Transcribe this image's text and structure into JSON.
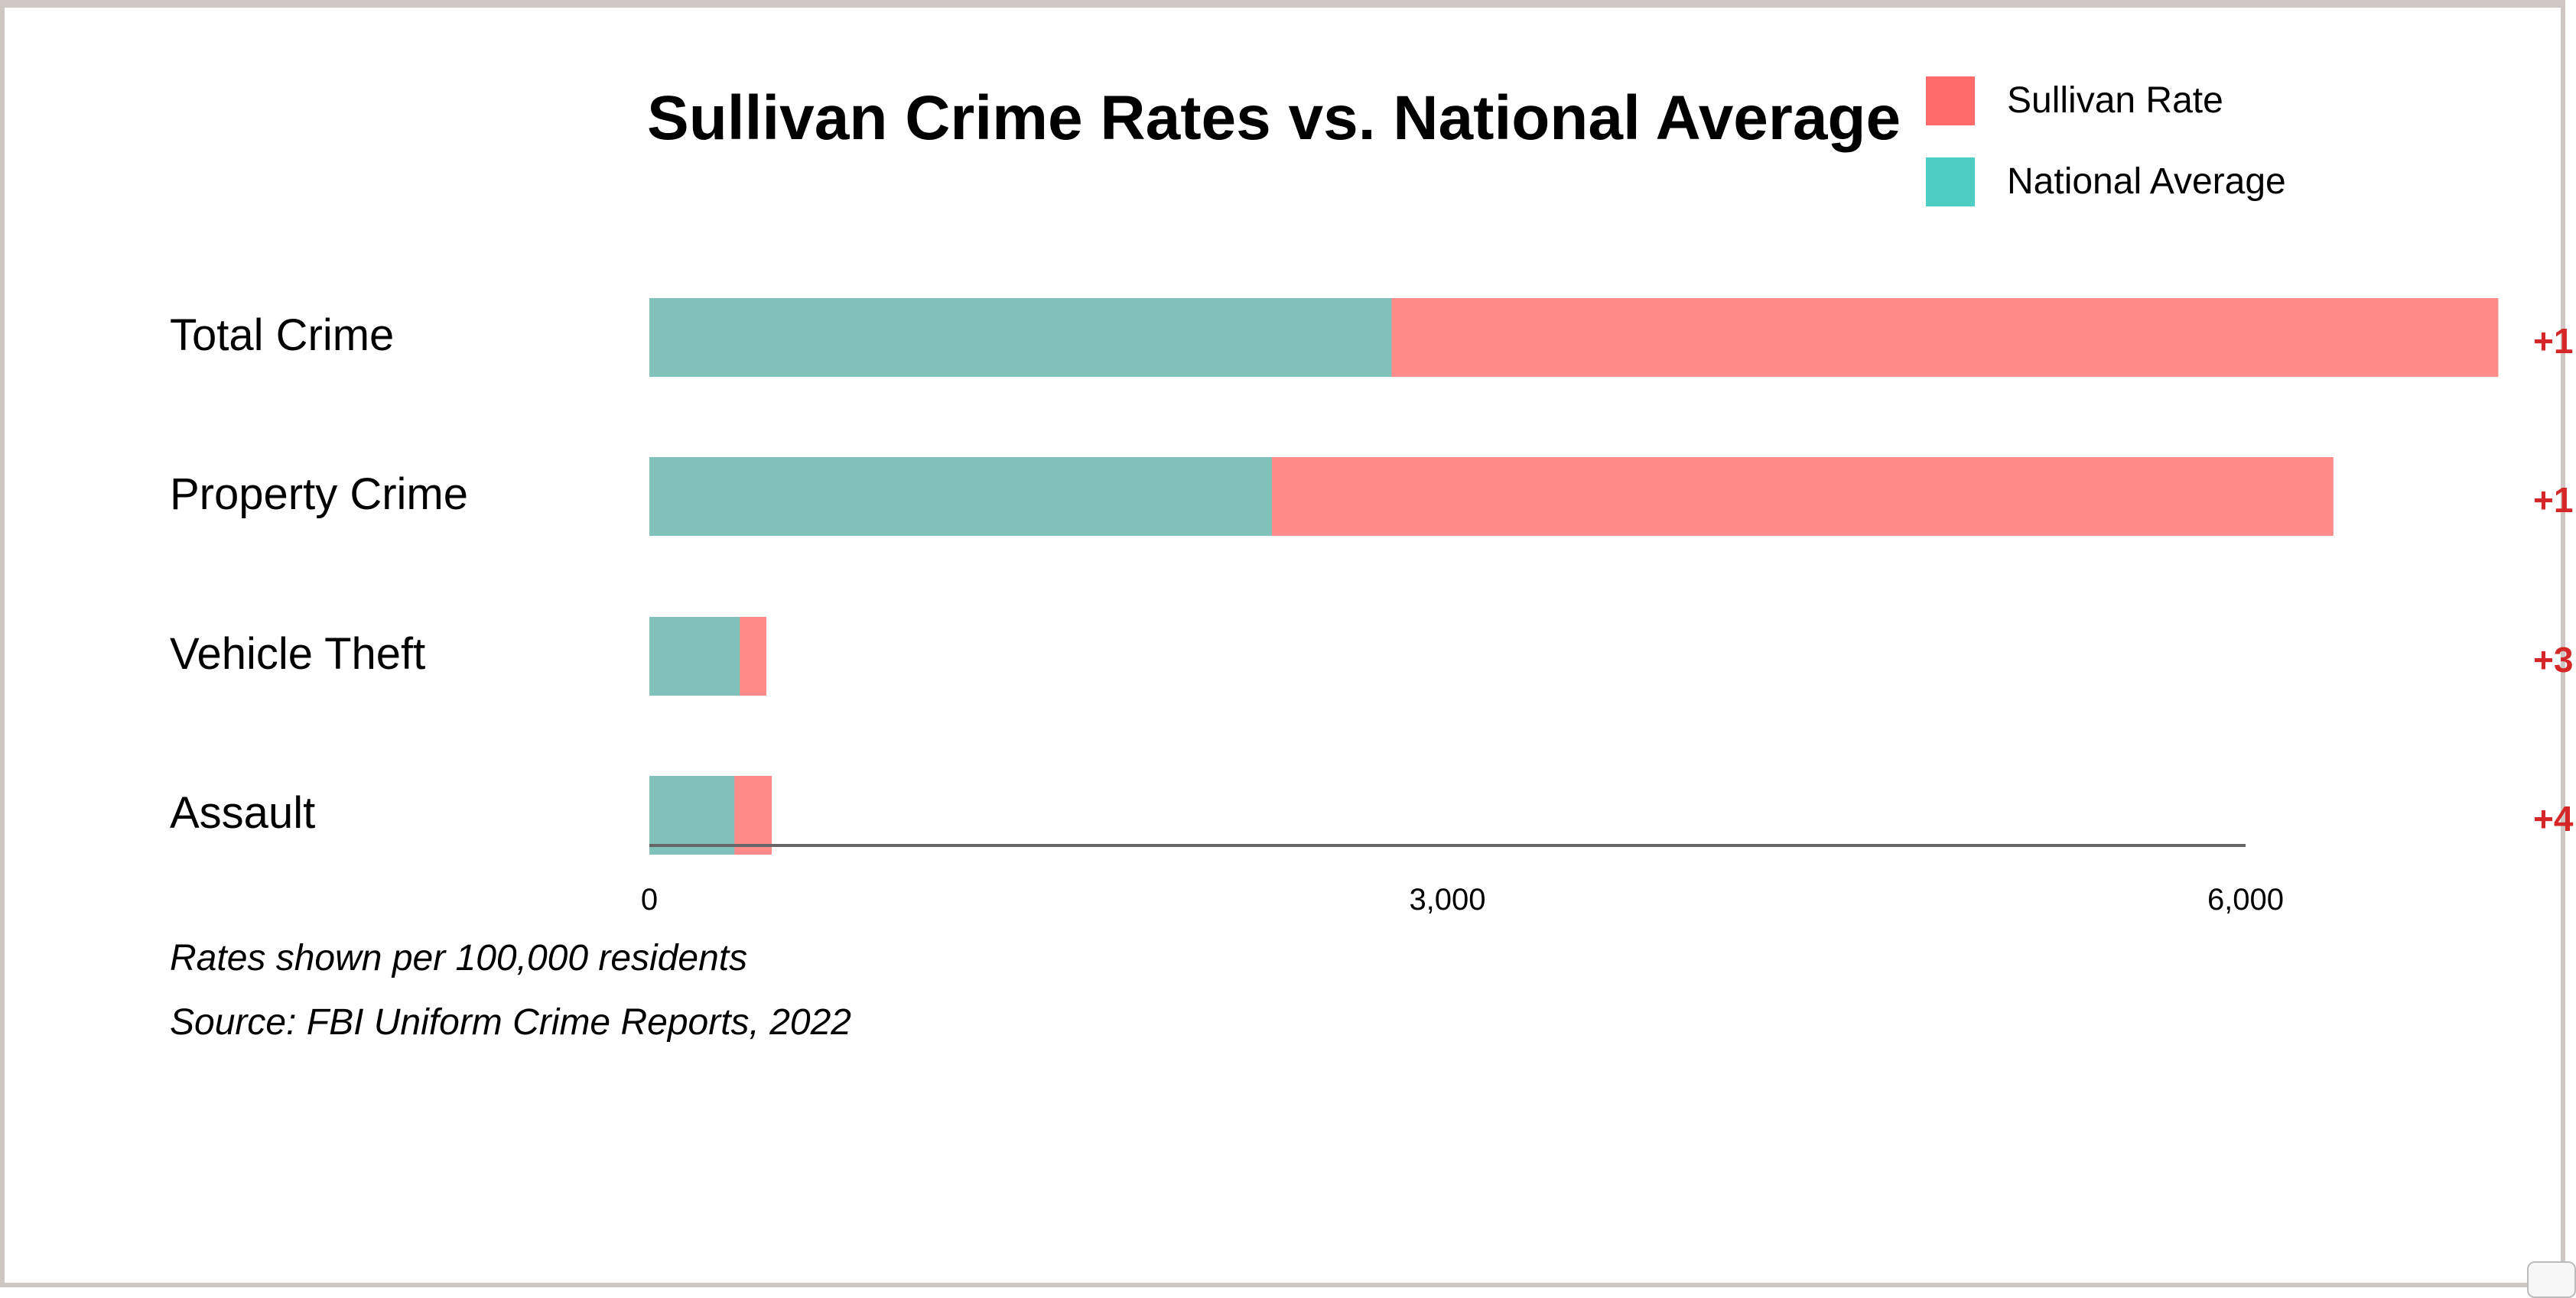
{
  "colors": {
    "sullivan": "#ff8a8a",
    "national": "#80c1b9",
    "legend_sullivan": "#ff6b6b",
    "legend_national": "#4ecdc4",
    "diff_text": "#d62728",
    "axis": "#666666"
  },
  "legend": {
    "sullivan_label": "Sullivan Rate",
    "national_label": "National Average"
  },
  "notes": {
    "line1": "Rates shown per 100,000 residents",
    "line2": "Source: FBI Uniform Crime Reports, 2022"
  },
  "chart_data": {
    "type": "bar",
    "orientation": "horizontal",
    "stacked_overlay": true,
    "title": "Sullivan Crime Rates vs. National Average",
    "categories": [
      "Total Crime",
      "Property Crime",
      "Vehicle Theft",
      "Assault"
    ],
    "series": [
      {
        "name": "Sullivan Rate",
        "values": [
          6950,
          6330,
          440,
          460
        ]
      },
      {
        "name": "National Average",
        "values": [
          2790,
          2340,
          340,
          320
        ]
      }
    ],
    "difference_labels": [
      "+1",
      "+1",
      "+3",
      "+4"
    ],
    "xlim": [
      0,
      6000
    ],
    "xticks": [
      0,
      3000,
      6000
    ],
    "xtick_labels": [
      "0",
      "3,000",
      "6,000"
    ],
    "xlabel": "",
    "ylabel": "",
    "grid": false,
    "legend_position": "top-right"
  }
}
